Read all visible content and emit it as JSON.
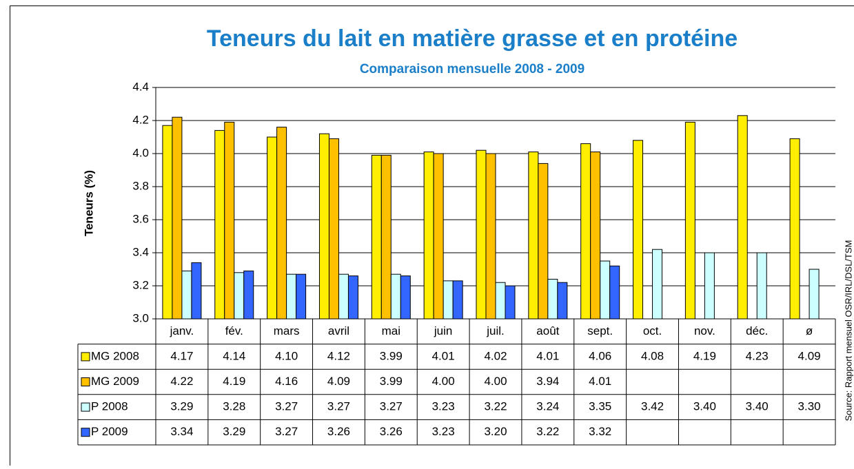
{
  "chart_data": {
    "type": "bar",
    "title": "Teneurs du lait en matière grasse et en protéine",
    "subtitle": "Comparaison mensuelle 2008 - 2009",
    "y_label": "Teneurs (%)",
    "source": "Source: Rapport mensuel OSR/IRL/DSL/TSM",
    "categories": [
      "janv.",
      "fév.",
      "mars",
      "avril",
      "mai",
      "juin",
      "juil.",
      "août",
      "sept.",
      "oct.",
      "nov.",
      "déc.",
      "ø"
    ],
    "series": [
      {
        "name": "MG 2008",
        "color": "#ffee00",
        "values": [
          4.17,
          4.14,
          4.1,
          4.12,
          3.99,
          4.01,
          4.02,
          4.01,
          4.06,
          4.08,
          4.19,
          4.23,
          4.09
        ],
        "value_labels": [
          "4.17",
          "4.14",
          "4.10",
          "4.12",
          "3.99",
          "4.01",
          "4.02",
          "4.01",
          "4.06",
          "4.08",
          "4.19",
          "4.23",
          "4.09"
        ]
      },
      {
        "name": "MG 2009",
        "color": "#ffc000",
        "values": [
          4.22,
          4.19,
          4.16,
          4.09,
          3.99,
          4.0,
          4.0,
          3.94,
          4.01,
          null,
          null,
          null,
          null
        ],
        "value_labels": [
          "4.22",
          "4.19",
          "4.16",
          "4.09",
          "3.99",
          "4.00",
          "4.00",
          "3.94",
          "4.01",
          null,
          null,
          null,
          null
        ]
      },
      {
        "name": "P 2008",
        "color": "#ccffff",
        "values": [
          3.29,
          3.28,
          3.27,
          3.27,
          3.27,
          3.23,
          3.22,
          3.24,
          3.35,
          3.42,
          3.4,
          3.4,
          3.3
        ],
        "value_labels": [
          "3.29",
          "3.28",
          "3.27",
          "3.27",
          "3.27",
          "3.23",
          "3.22",
          "3.24",
          "3.35",
          "3.42",
          "3.40",
          "3.40",
          "3.30"
        ]
      },
      {
        "name": "P 2009",
        "color": "#3366ff",
        "values": [
          3.34,
          3.29,
          3.27,
          3.26,
          3.26,
          3.23,
          3.2,
          3.22,
          3.32,
          null,
          null,
          null,
          null
        ],
        "value_labels": [
          "3.34",
          "3.29",
          "3.27",
          "3.26",
          "3.26",
          "3.23",
          "3.20",
          "3.22",
          "3.32",
          null,
          null,
          null,
          null
        ]
      }
    ],
    "ylim": [
      3.0,
      4.4
    ],
    "yticks": [
      {
        "value": 3.0,
        "label": "3.0"
      },
      3.2,
      3.4,
      3.6,
      3.8,
      {
        "value": 4.0,
        "label": "4.0"
      },
      4.2,
      4.4
    ],
    "grid": true
  }
}
